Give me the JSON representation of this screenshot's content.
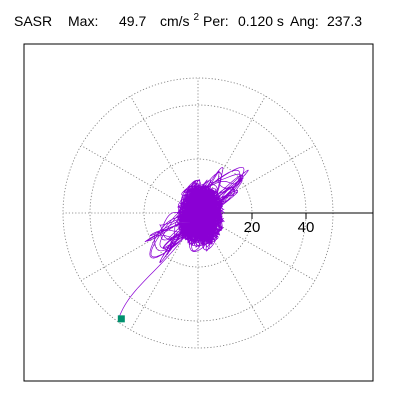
{
  "chart_data": {
    "type": "polar-orbit",
    "station": "SASR",
    "max_label": "Max:",
    "max_value": "49.7",
    "max_unit": "cm/s",
    "max_unit_power": "2",
    "period_label": "Per:",
    "period_value": "0.120 s",
    "angle_label": "Ang:",
    "angle_value": "237.3",
    "radial_max": 50,
    "radial_ticks": [
      {
        "value": 20,
        "label": "20"
      },
      {
        "value": 40,
        "label": "40"
      }
    ],
    "grid": true,
    "grid_circle_radii": [
      20,
      40
    ],
    "spoke_angles_deg": [
      0,
      30,
      60,
      90,
      120,
      150,
      180,
      210,
      240,
      270,
      300,
      330
    ],
    "series_color": "#8a00d4",
    "end_marker_color": "#00916e",
    "end_marker": {
      "x": -28.4,
      "y": -39.2
    }
  }
}
